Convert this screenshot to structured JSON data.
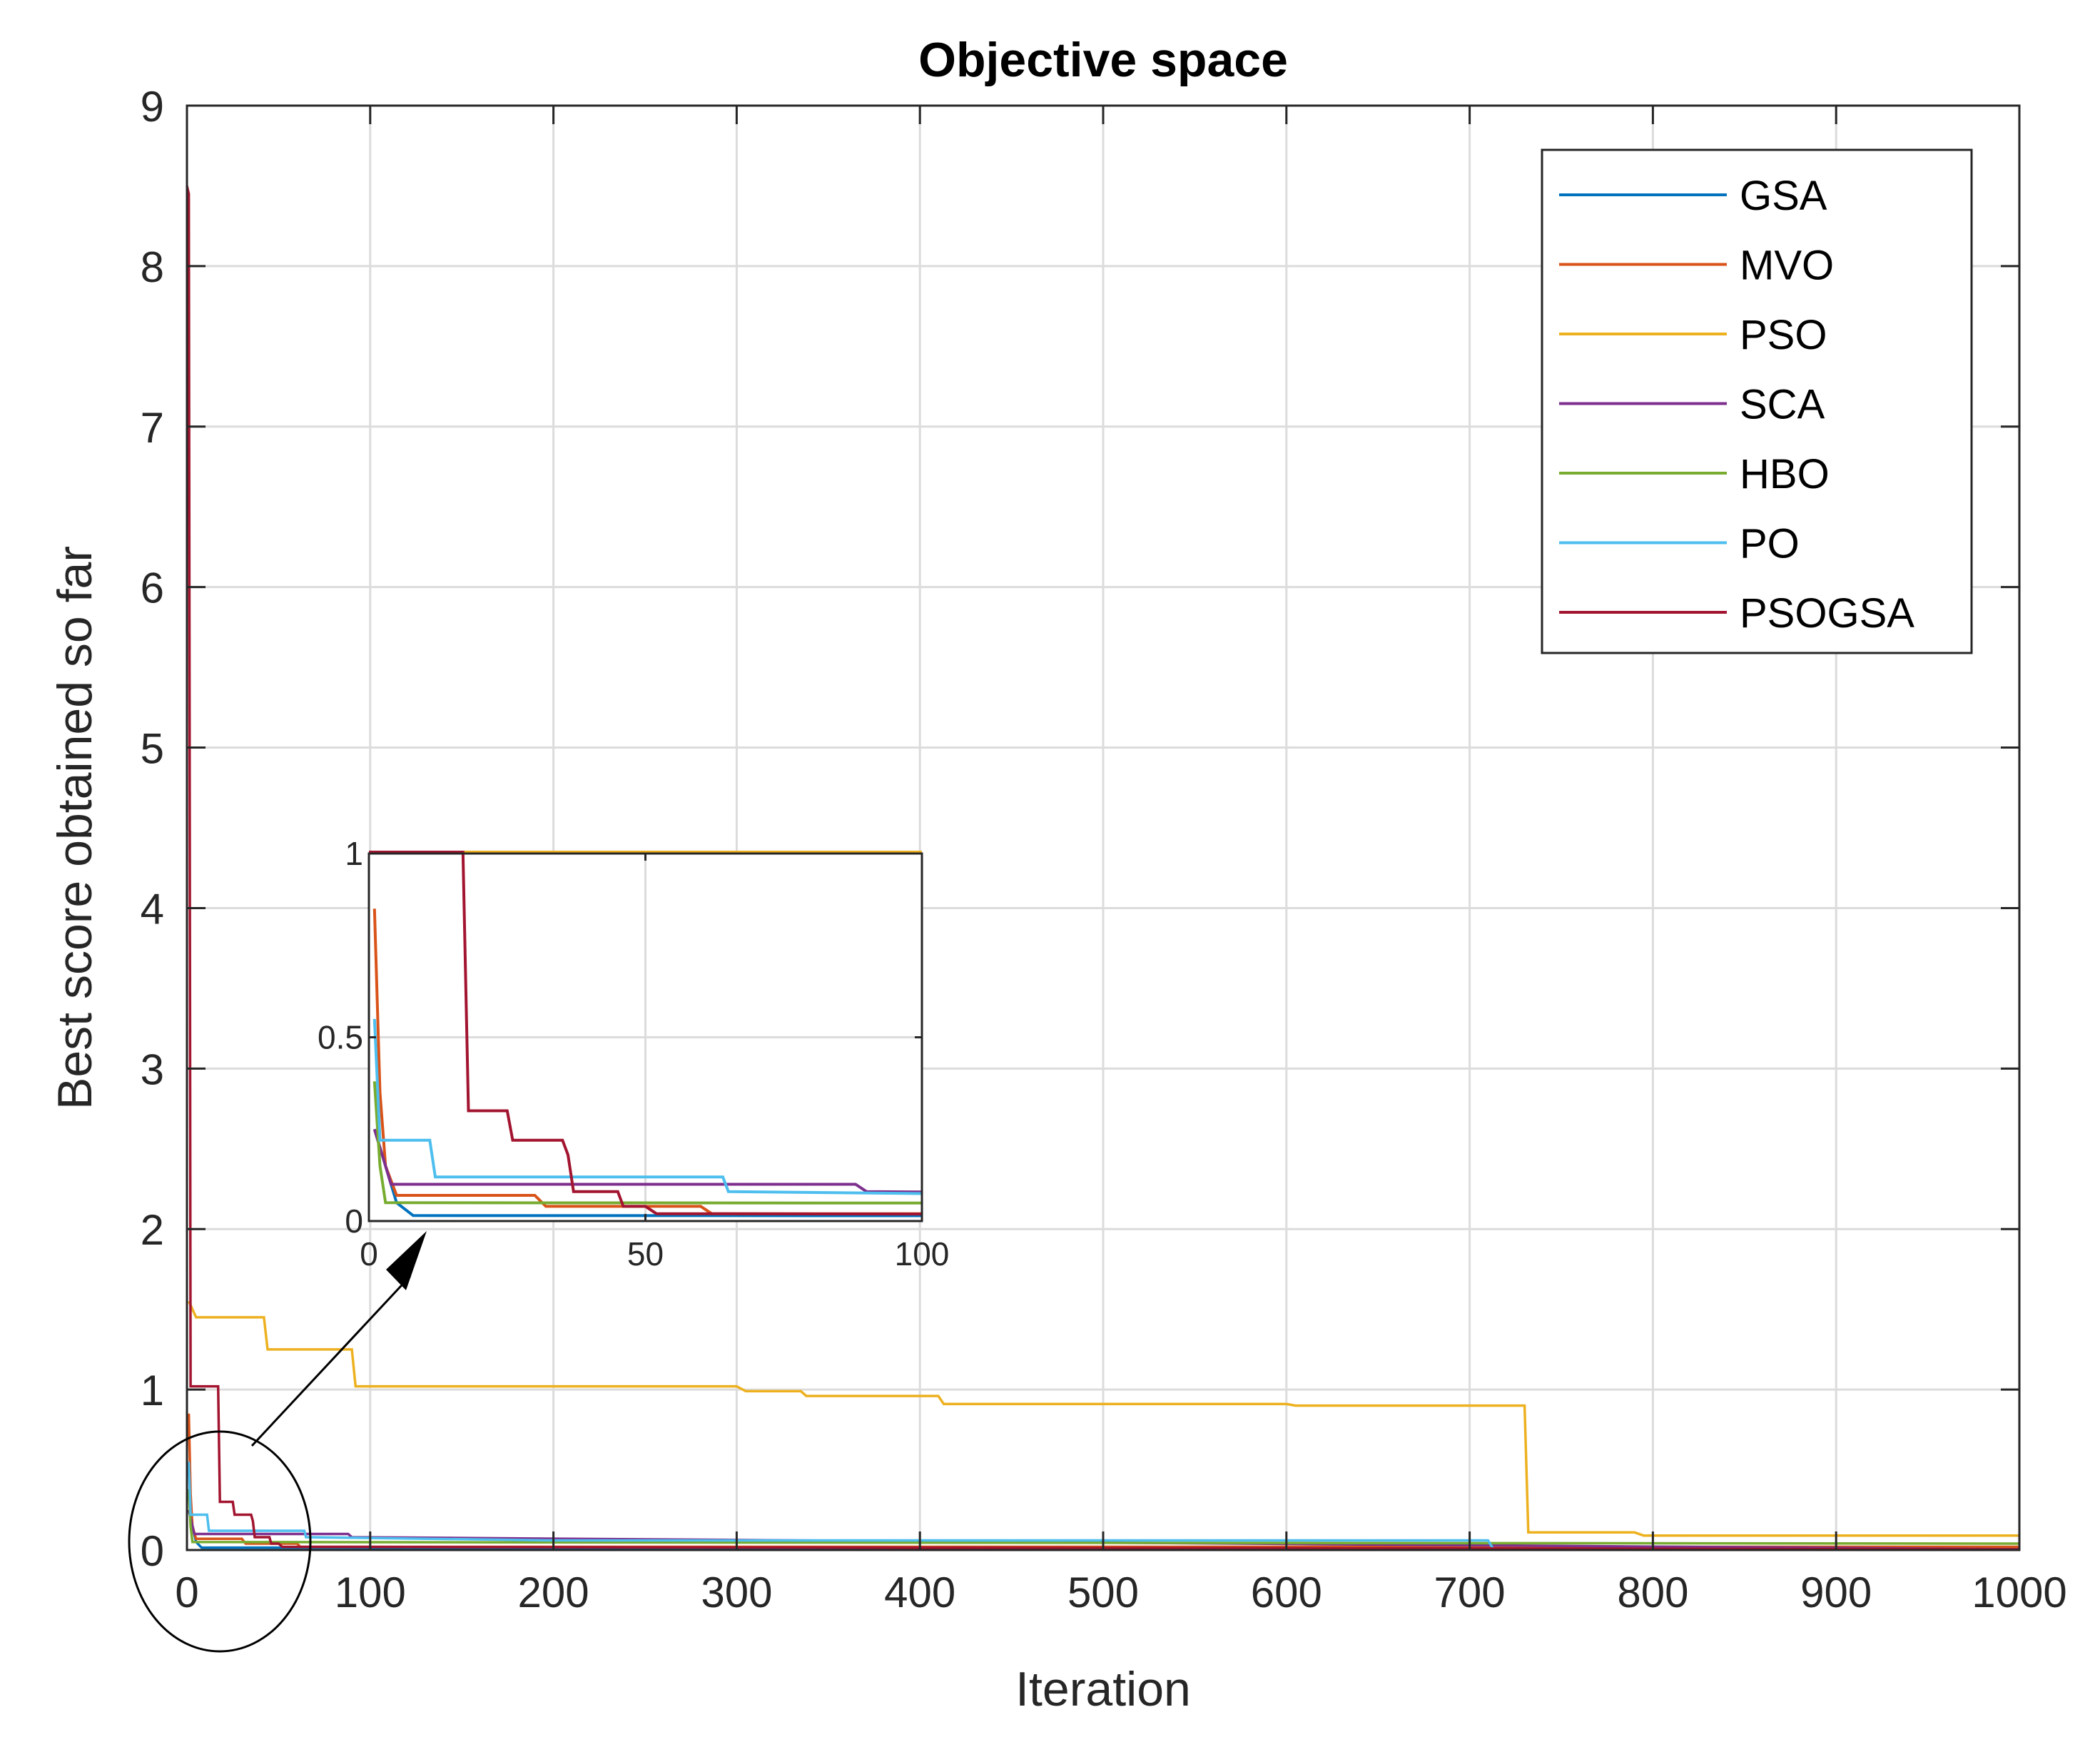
{
  "chart_data": {
    "type": "line",
    "title": "Objective space",
    "xlabel": "Iteration",
    "ylabel": "Best score obtained so far",
    "xlim": [
      0,
      1000
    ],
    "ylim": [
      0,
      9
    ],
    "xticks": [
      0,
      100,
      200,
      300,
      400,
      500,
      600,
      700,
      800,
      900,
      1000
    ],
    "yticks": [
      0,
      1,
      2,
      3,
      4,
      5,
      6,
      7,
      8,
      9
    ],
    "grid": true,
    "legend_position": "top-right",
    "series": [
      {
        "name": "GSA",
        "color": "#0072bd",
        "points": [
          [
            1,
            0.25
          ],
          [
            3,
            0.15
          ],
          [
            5,
            0.05
          ],
          [
            8,
            0.015
          ],
          [
            1000,
            0.01
          ]
        ]
      },
      {
        "name": "MVO",
        "color": "#d95319",
        "points": [
          [
            1,
            0.85
          ],
          [
            2,
            0.35
          ],
          [
            3,
            0.15
          ],
          [
            5,
            0.07
          ],
          [
            30,
            0.07
          ],
          [
            32,
            0.04
          ],
          [
            60,
            0.04
          ],
          [
            62,
            0.02
          ],
          [
            1000,
            0.02
          ]
        ]
      },
      {
        "name": "PSO",
        "color": "#edb120",
        "points": [
          [
            1,
            1.55
          ],
          [
            5,
            1.45
          ],
          [
            42,
            1.45
          ],
          [
            44,
            1.25
          ],
          [
            90,
            1.25
          ],
          [
            92,
            1.02
          ],
          [
            300,
            1.02
          ],
          [
            305,
            0.99
          ],
          [
            335,
            0.99
          ],
          [
            338,
            0.96
          ],
          [
            410,
            0.96
          ],
          [
            413,
            0.91
          ],
          [
            600,
            0.91
          ],
          [
            605,
            0.9
          ],
          [
            730,
            0.9
          ],
          [
            732,
            0.11
          ],
          [
            790,
            0.11
          ],
          [
            795,
            0.09
          ],
          [
            1000,
            0.09
          ]
        ]
      },
      {
        "name": "SCA",
        "color": "#7e2f8e",
        "points": [
          [
            1,
            0.25
          ],
          [
            4,
            0.1
          ],
          [
            88,
            0.1
          ],
          [
            90,
            0.08
          ],
          [
            1000,
            0.005
          ]
        ]
      },
      {
        "name": "HBO",
        "color": "#77ac30",
        "points": [
          [
            1,
            0.38
          ],
          [
            2,
            0.15
          ],
          [
            3,
            0.05
          ],
          [
            1000,
            0.04
          ]
        ]
      },
      {
        "name": "PO",
        "color": "#4dbeee",
        "points": [
          [
            1,
            0.55
          ],
          [
            2,
            0.22
          ],
          [
            11,
            0.22
          ],
          [
            12,
            0.12
          ],
          [
            64,
            0.12
          ],
          [
            65,
            0.08
          ],
          [
            200,
            0.06
          ],
          [
            710,
            0.06
          ],
          [
            713,
            0.005
          ],
          [
            1000,
            0.005
          ]
        ]
      },
      {
        "name": "PSOGSA",
        "color": "#a2142f",
        "points": [
          [
            0,
            8.5
          ],
          [
            1,
            8.45
          ],
          [
            2,
            1.02
          ],
          [
            17,
            1.02
          ],
          [
            18,
            0.3
          ],
          [
            25,
            0.3
          ],
          [
            26,
            0.22
          ],
          [
            35,
            0.22
          ],
          [
            36,
            0.18
          ],
          [
            37,
            0.08
          ],
          [
            45,
            0.08
          ],
          [
            46,
            0.04
          ],
          [
            50,
            0.04
          ],
          [
            52,
            0.02
          ],
          [
            1000,
            0.005
          ]
        ]
      }
    ],
    "inset": {
      "xlim": [
        0,
        100
      ],
      "ylim": [
        0,
        1
      ],
      "xticks": [
        0,
        50,
        100
      ],
      "yticks": [
        0,
        0.5,
        1
      ],
      "grid": true
    }
  }
}
